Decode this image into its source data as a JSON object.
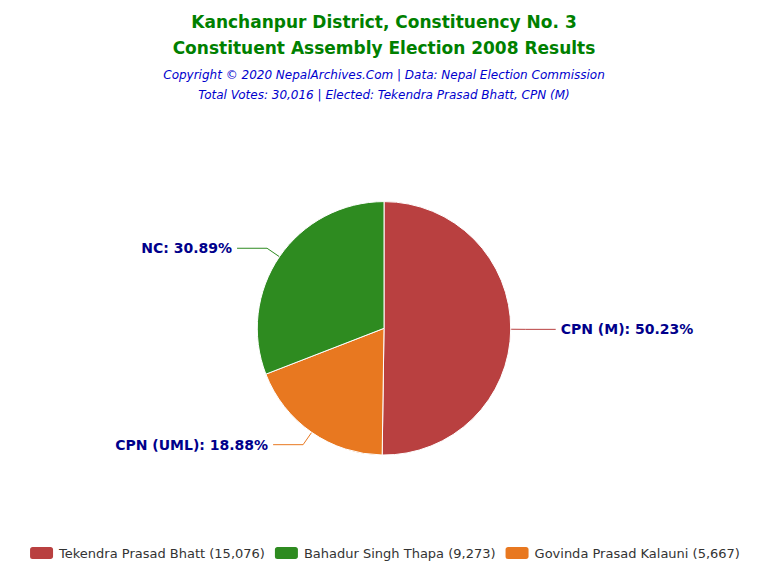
{
  "chart_data": {
    "type": "pie",
    "title": "Kanchanpur District, Constituency No. 3",
    "subtitle": "Constituent Assembly Election 2008 Results",
    "title_color": "#008000",
    "annotations": [
      {
        "text": "Copyright © 2020 NepalArchives.Com | Data: Nepal Election Commission",
        "color": "#0000CD"
      },
      {
        "text": "Total Votes: 30,016 | Elected: Tekendra Prasad Bhatt, CPN (M)",
        "color": "#0000CD"
      }
    ],
    "categories": [
      "CPN (M)",
      "CPN (UML)",
      "NC"
    ],
    "values": [
      50.23,
      18.88,
      30.89
    ],
    "value_labels": [
      "CPN (M): 50.23%",
      "CPN (UML): 18.88%",
      "NC: 30.89%"
    ],
    "colors": [
      "#B94040",
      "#E87820",
      "#2E8B20"
    ],
    "data_labels": true,
    "label_color": "#00008B",
    "legend": "bottom",
    "legend_entries": [
      {
        "label": "Tekendra Prasad Bhatt (15,076)",
        "color": "#B94040"
      },
      {
        "label": "Bahadur Singh Thapa (9,273)",
        "color": "#2E8B20"
      },
      {
        "label": "Govinda Prasad Kalauni (5,667)",
        "color": "#E87820"
      }
    ]
  }
}
